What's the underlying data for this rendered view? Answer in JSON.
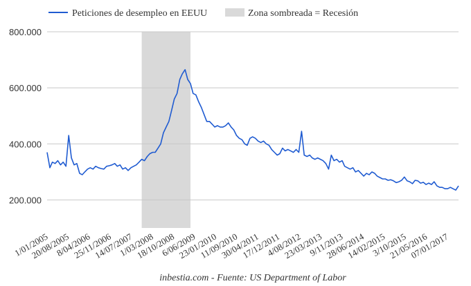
{
  "chart_data": {
    "type": "line",
    "title": "",
    "xlabel": "",
    "ylabel": "",
    "ylim": [
      100000,
      800000
    ],
    "y_ticks": [
      "800.000",
      "600.000",
      "400.000",
      "200.000"
    ],
    "y_tick_values": [
      800000,
      600000,
      400000,
      200000
    ],
    "grid": "horizontal",
    "legend_position": "top",
    "x_tick_labels": [
      "1/01/2005",
      "20/08/2005",
      "8/04/2006",
      "25/11/2006",
      "14/07/2007",
      "1/03/2008",
      "18/10/2008",
      "6/06/2009",
      "23/01/2010",
      "11/09/2010",
      "30/04/2011",
      "17/12/2011",
      "4/08/2012",
      "23/03/2013",
      "9/11/2013",
      "28/06/2014",
      "14/02/2015",
      "3/10/2015",
      "21/05/2016",
      "07/01/2017"
    ],
    "x_range": [
      "2005-01-01",
      "2017-09-01"
    ],
    "series": [
      {
        "name": "Peticiones de desempleo en EEUU",
        "color": "#1f5bd1",
        "points": [
          [
            "2005-01-01",
            370000
          ],
          [
            "2005-02-01",
            315000
          ],
          [
            "2005-03-01",
            335000
          ],
          [
            "2005-04-01",
            330000
          ],
          [
            "2005-05-01",
            340000
          ],
          [
            "2005-06-01",
            325000
          ],
          [
            "2005-07-01",
            335000
          ],
          [
            "2005-08-01",
            320000
          ],
          [
            "2005-09-01",
            430000
          ],
          [
            "2005-10-01",
            350000
          ],
          [
            "2005-11-01",
            325000
          ],
          [
            "2005-12-01",
            330000
          ],
          [
            "2006-01-01",
            295000
          ],
          [
            "2006-02-01",
            290000
          ],
          [
            "2006-03-01",
            300000
          ],
          [
            "2006-04-01",
            310000
          ],
          [
            "2006-05-01",
            315000
          ],
          [
            "2006-06-01",
            310000
          ],
          [
            "2006-07-01",
            320000
          ],
          [
            "2006-08-01",
            315000
          ],
          [
            "2006-09-01",
            312000
          ],
          [
            "2006-10-01",
            310000
          ],
          [
            "2006-11-01",
            320000
          ],
          [
            "2006-12-01",
            322000
          ],
          [
            "2007-01-01",
            325000
          ],
          [
            "2007-02-01",
            330000
          ],
          [
            "2007-03-01",
            320000
          ],
          [
            "2007-04-01",
            325000
          ],
          [
            "2007-05-01",
            310000
          ],
          [
            "2007-06-01",
            315000
          ],
          [
            "2007-07-01",
            305000
          ],
          [
            "2007-08-01",
            315000
          ],
          [
            "2007-09-01",
            320000
          ],
          [
            "2007-10-01",
            325000
          ],
          [
            "2007-11-01",
            335000
          ],
          [
            "2007-12-01",
            345000
          ],
          [
            "2008-01-01",
            340000
          ],
          [
            "2008-02-01",
            355000
          ],
          [
            "2008-03-01",
            365000
          ],
          [
            "2008-04-01",
            370000
          ],
          [
            "2008-05-01",
            370000
          ],
          [
            "2008-06-01",
            385000
          ],
          [
            "2008-07-01",
            400000
          ],
          [
            "2008-08-01",
            440000
          ],
          [
            "2008-09-01",
            460000
          ],
          [
            "2008-10-01",
            480000
          ],
          [
            "2008-11-01",
            520000
          ],
          [
            "2008-12-01",
            560000
          ],
          [
            "2009-01-01",
            580000
          ],
          [
            "2009-02-01",
            630000
          ],
          [
            "2009-03-01",
            650000
          ],
          [
            "2009-04-01",
            665000
          ],
          [
            "2009-05-01",
            630000
          ],
          [
            "2009-06-01",
            615000
          ],
          [
            "2009-07-01",
            580000
          ],
          [
            "2009-08-01",
            575000
          ],
          [
            "2009-09-01",
            550000
          ],
          [
            "2009-10-01",
            530000
          ],
          [
            "2009-11-01",
            505000
          ],
          [
            "2009-12-01",
            480000
          ],
          [
            "2010-01-01",
            480000
          ],
          [
            "2010-02-01",
            470000
          ],
          [
            "2010-03-01",
            460000
          ],
          [
            "2010-04-01",
            465000
          ],
          [
            "2010-05-01",
            460000
          ],
          [
            "2010-06-01",
            460000
          ],
          [
            "2010-07-01",
            465000
          ],
          [
            "2010-08-01",
            475000
          ],
          [
            "2010-09-01",
            460000
          ],
          [
            "2010-10-01",
            450000
          ],
          [
            "2010-11-01",
            430000
          ],
          [
            "2010-12-01",
            420000
          ],
          [
            "2011-01-01",
            415000
          ],
          [
            "2011-02-01",
            400000
          ],
          [
            "2011-03-01",
            395000
          ],
          [
            "2011-04-01",
            420000
          ],
          [
            "2011-05-01",
            425000
          ],
          [
            "2011-06-01",
            420000
          ],
          [
            "2011-07-01",
            410000
          ],
          [
            "2011-08-01",
            405000
          ],
          [
            "2011-09-01",
            410000
          ],
          [
            "2011-10-01",
            400000
          ],
          [
            "2011-11-01",
            395000
          ],
          [
            "2011-12-01",
            380000
          ],
          [
            "2012-01-01",
            370000
          ],
          [
            "2012-02-01",
            360000
          ],
          [
            "2012-03-01",
            365000
          ],
          [
            "2012-04-01",
            385000
          ],
          [
            "2012-05-01",
            375000
          ],
          [
            "2012-06-01",
            380000
          ],
          [
            "2012-07-01",
            375000
          ],
          [
            "2012-08-01",
            370000
          ],
          [
            "2012-09-01",
            380000
          ],
          [
            "2012-10-01",
            370000
          ],
          [
            "2012-11-01",
            445000
          ],
          [
            "2012-12-01",
            360000
          ],
          [
            "2013-01-01",
            355000
          ],
          [
            "2013-02-01",
            360000
          ],
          [
            "2013-03-01",
            350000
          ],
          [
            "2013-04-01",
            345000
          ],
          [
            "2013-05-01",
            350000
          ],
          [
            "2013-06-01",
            345000
          ],
          [
            "2013-07-01",
            340000
          ],
          [
            "2013-08-01",
            330000
          ],
          [
            "2013-09-01",
            310000
          ],
          [
            "2013-10-01",
            360000
          ],
          [
            "2013-11-01",
            340000
          ],
          [
            "2013-12-01",
            345000
          ],
          [
            "2014-01-01",
            335000
          ],
          [
            "2014-02-01",
            340000
          ],
          [
            "2014-03-01",
            320000
          ],
          [
            "2014-04-01",
            315000
          ],
          [
            "2014-05-01",
            310000
          ],
          [
            "2014-06-01",
            315000
          ],
          [
            "2014-07-01",
            300000
          ],
          [
            "2014-08-01",
            305000
          ],
          [
            "2014-09-01",
            295000
          ],
          [
            "2014-10-01",
            285000
          ],
          [
            "2014-11-01",
            295000
          ],
          [
            "2014-12-01",
            290000
          ],
          [
            "2015-01-01",
            300000
          ],
          [
            "2015-02-01",
            295000
          ],
          [
            "2015-03-01",
            285000
          ],
          [
            "2015-04-01",
            280000
          ],
          [
            "2015-05-01",
            275000
          ],
          [
            "2015-06-01",
            275000
          ],
          [
            "2015-07-01",
            270000
          ],
          [
            "2015-08-01",
            272000
          ],
          [
            "2015-09-01",
            268000
          ],
          [
            "2015-10-01",
            262000
          ],
          [
            "2015-11-01",
            265000
          ],
          [
            "2015-12-01",
            270000
          ],
          [
            "2016-01-01",
            282000
          ],
          [
            "2016-02-01",
            268000
          ],
          [
            "2016-03-01",
            265000
          ],
          [
            "2016-04-01",
            258000
          ],
          [
            "2016-05-01",
            270000
          ],
          [
            "2016-06-01",
            268000
          ],
          [
            "2016-07-01",
            260000
          ],
          [
            "2016-08-01",
            263000
          ],
          [
            "2016-09-01",
            255000
          ],
          [
            "2016-10-01",
            260000
          ],
          [
            "2016-11-01",
            255000
          ],
          [
            "2016-12-01",
            265000
          ],
          [
            "2017-01-01",
            250000
          ],
          [
            "2017-02-01",
            245000
          ],
          [
            "2017-03-01",
            245000
          ],
          [
            "2017-04-01",
            240000
          ],
          [
            "2017-05-01",
            240000
          ],
          [
            "2017-06-01",
            245000
          ],
          [
            "2017-07-01",
            240000
          ],
          [
            "2017-08-01",
            235000
          ],
          [
            "2017-09-01",
            250000
          ]
        ]
      }
    ],
    "shaded_region": {
      "name": "Zona sombreada = Recesión",
      "color": "#d9d9d9",
      "start": "2007-12-01",
      "end": "2009-06-01"
    }
  },
  "source_text": "inbestia.com - Fuente: US Department of Labor"
}
